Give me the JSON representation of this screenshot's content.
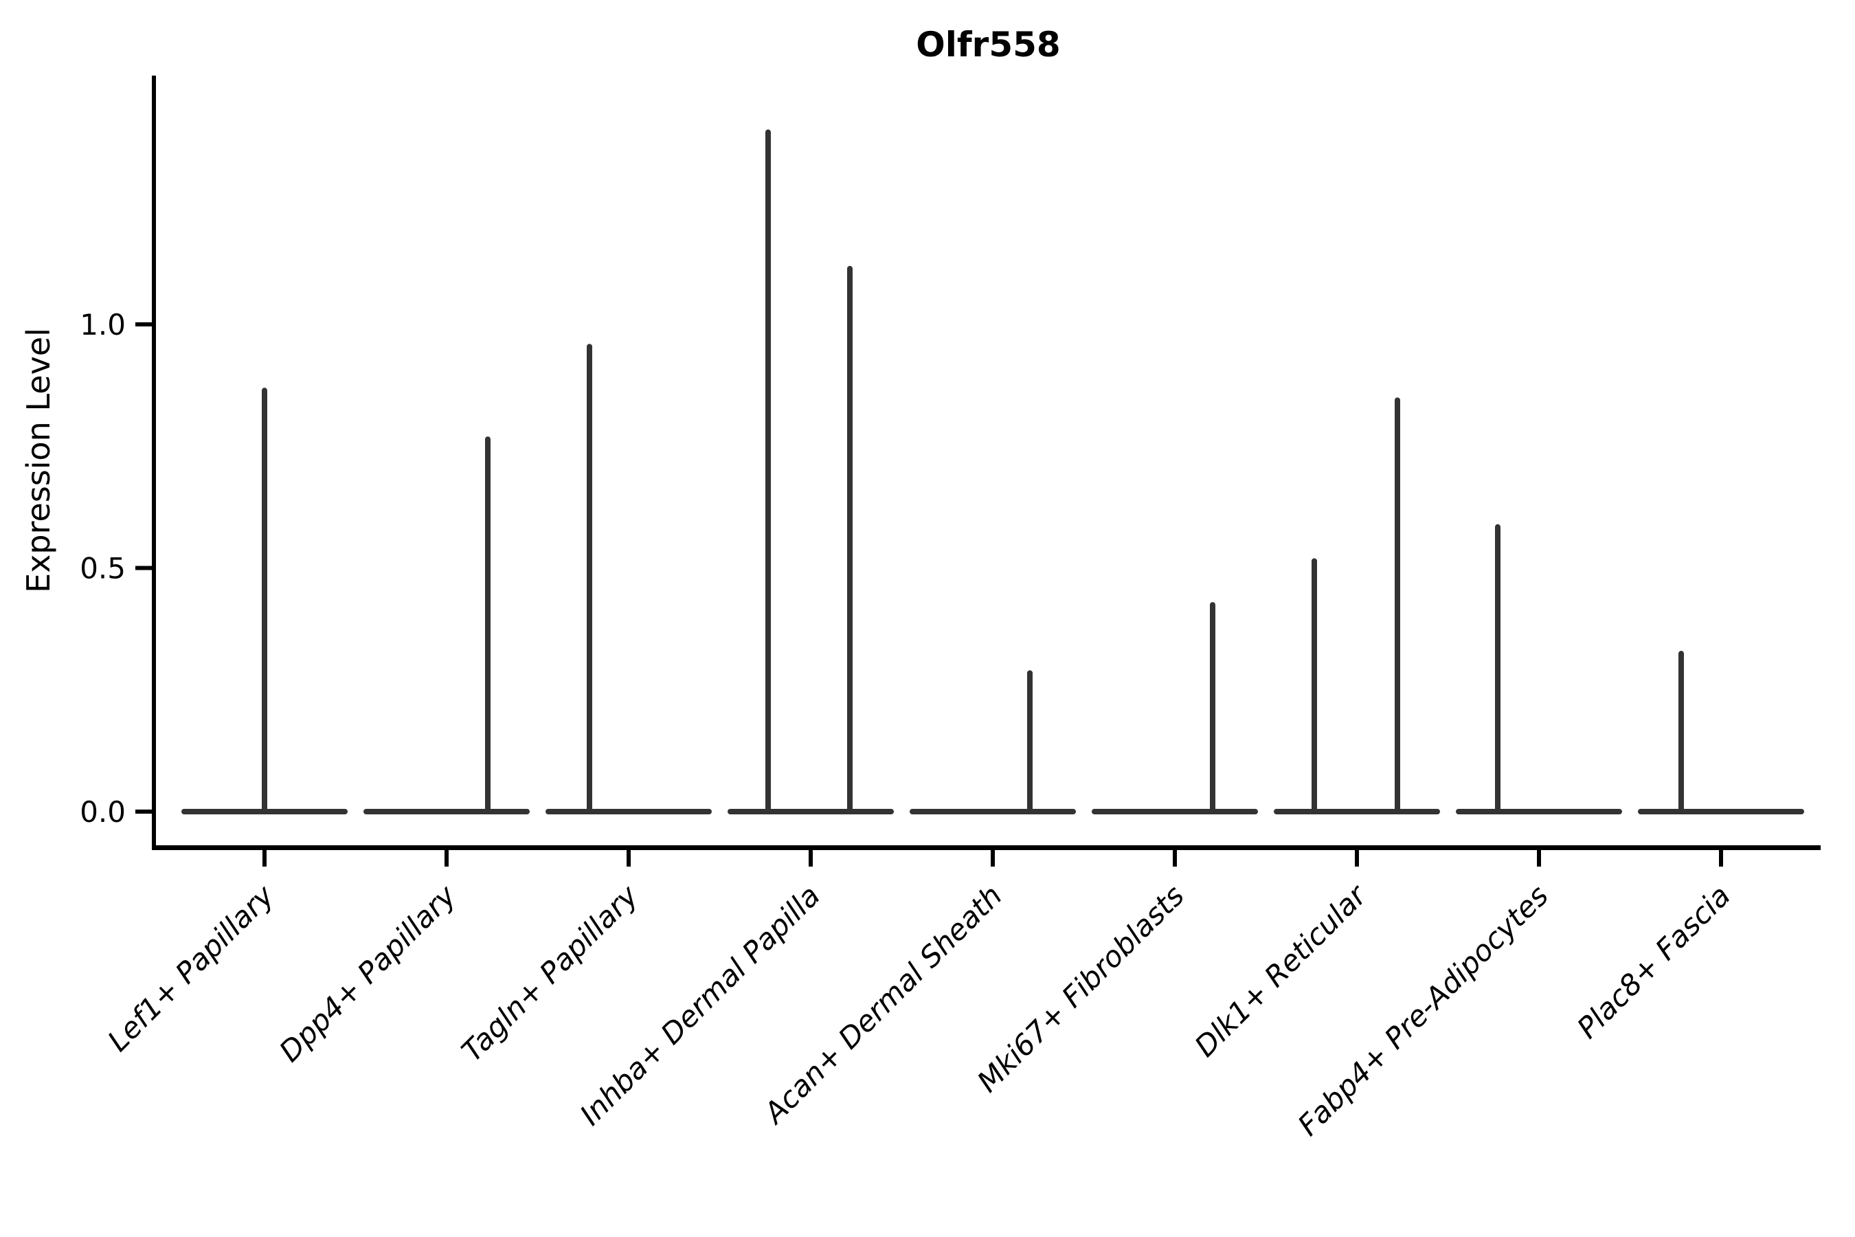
{
  "chart_data": {
    "type": "violin",
    "title": "Olfr558",
    "ylabel": "Expression Level",
    "xlabel": "",
    "ylim": [
      0,
      1.5
    ],
    "yticks": [
      "0.0",
      "0.5",
      "1.0"
    ],
    "ytick_values": [
      0.0,
      0.5,
      1.0
    ],
    "grid": "off",
    "legend": "none",
    "axis_color": "#000000",
    "violin_color": "#333333",
    "categories": [
      "Lef1+ Papillary",
      "Dpp4+ Papillary",
      "Tagln+ Papillary",
      "Inhba+ Dermal Papilla",
      "Acan+ Dermal Sheath",
      "Mki67+ Fibroblasts",
      "Dlk1+ Reticular",
      "Fabp4+ Pre-Adipocytes",
      "Plac8+ Fascia"
    ],
    "violins": [
      {
        "category": "Lef1+ Papillary",
        "spikes": [
          {
            "dx": 0,
            "max": 0.87
          }
        ]
      },
      {
        "category": "Dpp4+ Papillary",
        "spikes": [
          {
            "dx": 60,
            "max": 0.77
          }
        ]
      },
      {
        "category": "Tagln+ Papillary",
        "spikes": [
          {
            "dx": -57,
            "max": 0.96
          }
        ]
      },
      {
        "category": "Inhba+ Dermal Papilla",
        "spikes": [
          {
            "dx": -62,
            "max": 1.4
          },
          {
            "dx": 57,
            "max": 1.12
          }
        ]
      },
      {
        "category": "Acan+ Dermal Sheath",
        "spikes": [
          {
            "dx": 54,
            "max": 0.29
          }
        ]
      },
      {
        "category": "Mki67+ Fibroblasts",
        "spikes": [
          {
            "dx": 55,
            "max": 0.43
          }
        ]
      },
      {
        "category": "Dlk1+ Reticular",
        "spikes": [
          {
            "dx": -62,
            "max": 0.52
          },
          {
            "dx": 59,
            "max": 0.85
          }
        ]
      },
      {
        "category": "Fabp4+ Pre-Adipocytes",
        "spikes": [
          {
            "dx": -60,
            "max": 0.59
          }
        ]
      },
      {
        "category": "Plac8+ Fascia",
        "spikes": [
          {
            "dx": -58,
            "max": 0.33
          }
        ]
      }
    ]
  }
}
